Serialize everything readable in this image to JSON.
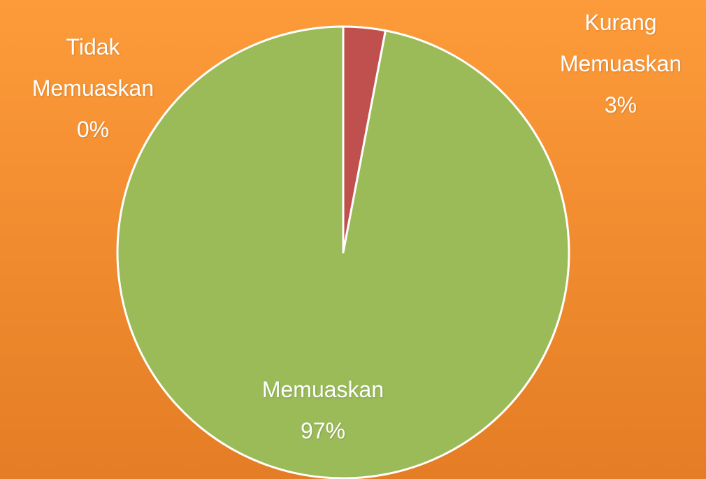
{
  "chart_data": {
    "type": "pie",
    "categories": [
      "Tidak Memuaskan",
      "Kurang Memuaskan",
      "Memuaskan"
    ],
    "values": [
      0,
      3,
      97
    ],
    "value_labels": [
      "0%",
      "3%",
      "97%"
    ],
    "colors": [
      "#4f81bd",
      "#c0504d",
      "#9bbb59"
    ]
  }
}
